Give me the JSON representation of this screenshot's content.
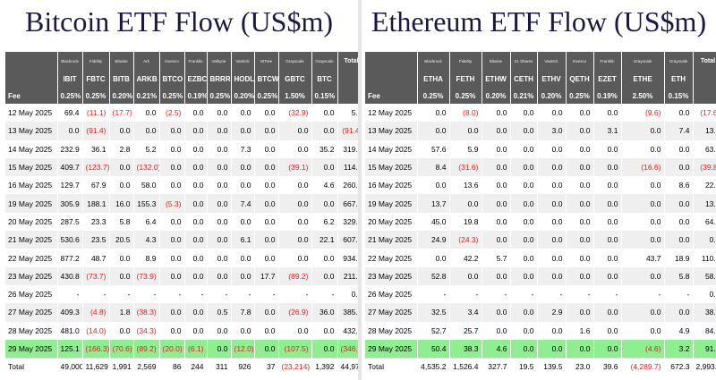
{
  "btc": {
    "title": "Bitcoin ETF Flow (US$m)",
    "issuers": [
      "Blackrock",
      "Fidelity",
      "Bitwise",
      "Ark",
      "Invesco",
      "Franklin",
      "Valkyrie",
      "VanEck",
      "WTree",
      "Grayscale",
      "Grayscale"
    ],
    "total_header": "Total",
    "tickers": [
      "IBIT",
      "FBTC",
      "BITB",
      "ARKB",
      "BTCO",
      "EZBC",
      "BRRR",
      "HODL",
      "BTCW",
      "GBTC",
      "BTC"
    ],
    "fee_label": "Fee",
    "fees": [
      "0.25%",
      "0.25%",
      "0.20%",
      "0.21%",
      "0.25%",
      "0.19%",
      "0.25%",
      "0.20%",
      "0.25%",
      "1.50%",
      "0.15%"
    ],
    "rows": [
      {
        "date": "12 May 2025",
        "values": [
          "69.4",
          "(11.1)",
          "(17.7)",
          "0.0",
          "(2.5)",
          "0.0",
          "0.0",
          "0.0",
          "0.0",
          "(32.9)",
          "0.0"
        ],
        "total": "5.2"
      },
      {
        "date": "13 May 2025",
        "values": [
          "0.0",
          "(91.4)",
          "0.0",
          "0.0",
          "0.0",
          "0.0",
          "0.0",
          "0.0",
          "0.0",
          "0.0",
          "0.0"
        ],
        "total": "(91.4)"
      },
      {
        "date": "14 May 2025",
        "values": [
          "232.9",
          "36.1",
          "2.8",
          "5.2",
          "0.0",
          "0.0",
          "0.0",
          "7.3",
          "0.0",
          "0.0",
          "35.2"
        ],
        "total": "319.5"
      },
      {
        "date": "15 May 2025",
        "values": [
          "409.7",
          "(123.7)",
          "0.0",
          "(132.0)",
          "0.0",
          "0.0",
          "0.0",
          "0.0",
          "0.0",
          "(39.1)",
          "0.0"
        ],
        "total": "114.9"
      },
      {
        "date": "16 May 2025",
        "values": [
          "129.7",
          "67.9",
          "0.0",
          "58.0",
          "0.0",
          "0.0",
          "0.0",
          "0.0",
          "0.0",
          "0.0",
          "4.6"
        ],
        "total": "260.2"
      },
      {
        "date": "19 May 2025",
        "values": [
          "305.9",
          "188.1",
          "16.0",
          "155.3",
          "(5.3)",
          "0.0",
          "0.0",
          "7.4",
          "0.0",
          "0.0",
          "0.0"
        ],
        "total": "667.4"
      },
      {
        "date": "20 May 2025",
        "values": [
          "287.5",
          "23.3",
          "5.8",
          "6.4",
          "0.0",
          "0.0",
          "0.0",
          "0.0",
          "0.0",
          "0.0",
          "6.2"
        ],
        "total": "329.2"
      },
      {
        "date": "21 May 2025",
        "values": [
          "530.6",
          "23.5",
          "20.5",
          "4.3",
          "0.0",
          "0.0",
          "0.0",
          "6.1",
          "0.0",
          "0.0",
          "22.1"
        ],
        "total": "607.1"
      },
      {
        "date": "22 May 2025",
        "values": [
          "877.2",
          "48.7",
          "0.0",
          "8.9",
          "0.0",
          "0.0",
          "0.0",
          "0.0",
          "0.0",
          "0.0",
          "0.0"
        ],
        "total": "934.8"
      },
      {
        "date": "23 May 2025",
        "values": [
          "430.8",
          "(73.7)",
          "0.0",
          "(73.9)",
          "0.0",
          "0.0",
          "0.0",
          "0.0",
          "17.7",
          "(89.2)",
          "0.0"
        ],
        "total": "211.7"
      },
      {
        "date": "26 May 2025",
        "values": [
          "-",
          "-",
          "-",
          "-",
          "-",
          "-",
          "-",
          "-",
          "-",
          "-",
          "-"
        ],
        "total": "0.0"
      },
      {
        "date": "27 May 2025",
        "values": [
          "409.3",
          "(4.8)",
          "1.8",
          "(38.3)",
          "0.0",
          "0.0",
          "0.5",
          "7.8",
          "0.0",
          "(26.9)",
          "36.0"
        ],
        "total": "385.4"
      },
      {
        "date": "28 May 2025",
        "values": [
          "481.0",
          "(14.0)",
          "0.0",
          "(34.3)",
          "0.0",
          "0.0",
          "0.0",
          "0.0",
          "0.0",
          "0.0",
          "0.0"
        ],
        "total": "432.7"
      },
      {
        "date": "29 May 2025",
        "values": [
          "125.1",
          "(166.3)",
          "(70.6)",
          "(89.2)",
          "(20.0)",
          "(6.1)",
          "0.0",
          "(12.0)",
          "0.0",
          "(107.5)",
          "0.0"
        ],
        "total": "(346.8)",
        "highlight": true
      }
    ],
    "total_label": "Total",
    "totals": [
      "49,000",
      "11,629",
      "1,991",
      "2,569",
      "86",
      "244",
      "311",
      "926",
      "37",
      "(23,214)",
      "1,392"
    ],
    "grand_total": "44,971"
  },
  "eth": {
    "title": "Ethereum ETF Flow (US$m)",
    "issuers": [
      "Blackrock",
      "Fidelity",
      "Bitwise",
      "21 Shares",
      "VanEck",
      "Invesco",
      "Franklin",
      "Grayscale",
      "Grayscale"
    ],
    "total_header": "Total",
    "tickers": [
      "ETHA",
      "FETH",
      "ETHW",
      "CETH",
      "ETHV",
      "QETH",
      "EZET",
      "ETHE",
      "ETH"
    ],
    "fee_label": "Fee",
    "fees": [
      "0.25%",
      "0.25%",
      "0.20%",
      "0.21%",
      "0.20%",
      "0.25%",
      "0.19%",
      "2.50%",
      "0.15%"
    ],
    "rows": [
      {
        "date": "12 May 2025",
        "values": [
          "0.0",
          "(8.0)",
          "0.0",
          "0.0",
          "0.0",
          "0.0",
          "0.0",
          "(9.6)",
          "0.0"
        ],
        "total": "(17.6)"
      },
      {
        "date": "13 May 2025",
        "values": [
          "0.0",
          "0.0",
          "0.0",
          "0.0",
          "3.0",
          "0.0",
          "3.1",
          "0.0",
          "7.4"
        ],
        "total": "13.5"
      },
      {
        "date": "14 May 2025",
        "values": [
          "57.6",
          "5.9",
          "0.0",
          "0.0",
          "0.0",
          "0.0",
          "0.0",
          "0.0",
          "0.0"
        ],
        "total": "63.5"
      },
      {
        "date": "15 May 2025",
        "values": [
          "8.4",
          "(31.6)",
          "0.0",
          "0.0",
          "0.0",
          "0.0",
          "0.0",
          "(16.6)",
          "0.0"
        ],
        "total": "(39.8)"
      },
      {
        "date": "16 May 2025",
        "values": [
          "0.0",
          "13.6",
          "0.0",
          "0.0",
          "0.0",
          "0.0",
          "0.0",
          "0.0",
          "8.6"
        ],
        "total": "22.2"
      },
      {
        "date": "19 May 2025",
        "values": [
          "13.7",
          "0.0",
          "0.0",
          "0.0",
          "0.0",
          "0.0",
          "0.0",
          "0.0",
          "0.0"
        ],
        "total": "13.7"
      },
      {
        "date": "20 May 2025",
        "values": [
          "45.0",
          "19.8",
          "0.0",
          "0.0",
          "0.0",
          "0.0",
          "0.0",
          "0.0",
          "0.0"
        ],
        "total": "64.8"
      },
      {
        "date": "21 May 2025",
        "values": [
          "24.9",
          "(24.3)",
          "0.0",
          "0.0",
          "0.0",
          "0.0",
          "0.0",
          "0.0",
          "0.0"
        ],
        "total": "0.6"
      },
      {
        "date": "22 May 2025",
        "values": [
          "0.0",
          "42.2",
          "5.7",
          "0.0",
          "0.0",
          "0.0",
          "0.0",
          "43.7",
          "18.9"
        ],
        "total": "110.5"
      },
      {
        "date": "23 May 2025",
        "values": [
          "52.8",
          "0.0",
          "0.0",
          "0.0",
          "0.0",
          "0.0",
          "0.0",
          "0.0",
          "5.8"
        ],
        "total": "58.6"
      },
      {
        "date": "26 May 2025",
        "values": [
          "-",
          "-",
          "-",
          "-",
          "-",
          "-",
          "-",
          "-",
          "-"
        ],
        "total": "0.0"
      },
      {
        "date": "27 May 2025",
        "values": [
          "32.5",
          "3.4",
          "0.0",
          "0.0",
          "2.9",
          "0.0",
          "0.0",
          "0.0",
          "0.0"
        ],
        "total": "38.8"
      },
      {
        "date": "28 May 2025",
        "values": [
          "52.7",
          "25.7",
          "0.0",
          "0.0",
          "0.0",
          "1.6",
          "0.0",
          "0.0",
          "4.9"
        ],
        "total": "84.9"
      },
      {
        "date": "29 May 2025",
        "values": [
          "50.4",
          "38.3",
          "4.6",
          "0.0",
          "0.0",
          "0.0",
          "0.0",
          "(4.6)",
          "3.2"
        ],
        "total": "91.9",
        "highlight": true
      }
    ],
    "total_label": "Total",
    "totals": [
      "4,535.2",
      "1,526.4",
      "327.7",
      "19.5",
      "139.5",
      "23.0",
      "39.6",
      "(4,289.7)",
      "672.3"
    ],
    "grand_total": "2,993.5"
  },
  "colors": {
    "header_bg": "#5a5a5a",
    "highlight_row": "#8fee8f",
    "negative": "#e02020",
    "title": "#1a1a40"
  }
}
